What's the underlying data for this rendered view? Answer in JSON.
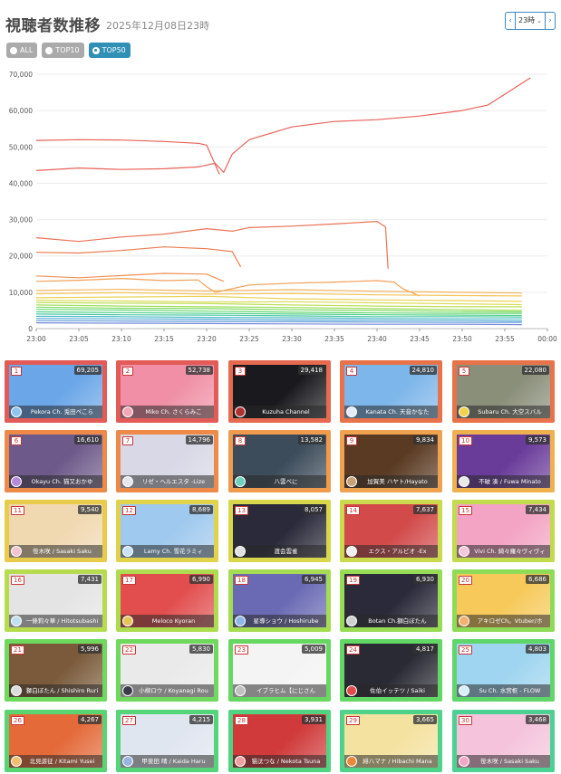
{
  "header": {
    "title": "視聴者数推移",
    "subtitle": "2025年12月08日23時",
    "hour_select": "23時",
    "prev_icon": "‹",
    "next_icon": "›",
    "caret_icon": "⌄"
  },
  "filters": [
    {
      "label": "ALL",
      "active": false
    },
    {
      "label": "TOP10",
      "active": false
    },
    {
      "label": "TOP50",
      "active": true
    }
  ],
  "chart_data": {
    "type": "line",
    "x_ticks": [
      "23:00",
      "23:05",
      "23:10",
      "23:15",
      "23:20",
      "23:25",
      "23:30",
      "23:35",
      "23:40",
      "23:45",
      "23:50",
      "23:55",
      "00:00"
    ],
    "ylim": [
      0,
      70000
    ],
    "y_ticks": [
      "0",
      "10,000",
      "20,000",
      "30,000",
      "40,000",
      "50,000",
      "60,000",
      "70,000"
    ],
    "grid": true,
    "series": [
      {
        "color": "#e8584f",
        "points": [
          [
            0,
            43500
          ],
          [
            5,
            44200
          ],
          [
            10,
            43800
          ],
          [
            15,
            44000
          ],
          [
            19,
            44500
          ],
          [
            21,
            45500
          ],
          [
            22,
            43000
          ],
          [
            23,
            48000
          ],
          [
            25,
            52000
          ],
          [
            30,
            55500
          ],
          [
            35,
            57000
          ],
          [
            40,
            57500
          ],
          [
            45,
            58500
          ],
          [
            50,
            60000
          ],
          [
            53,
            61500
          ],
          [
            55,
            64500
          ],
          [
            57,
            67500
          ],
          [
            58,
            69000
          ]
        ]
      },
      {
        "color": "#e8584f",
        "points": [
          [
            0,
            51800
          ],
          [
            5,
            52000
          ],
          [
            10,
            51900
          ],
          [
            15,
            51500
          ],
          [
            19,
            51000
          ],
          [
            20,
            50500
          ],
          [
            21.5,
            42500
          ]
        ]
      },
      {
        "color": "#e96a4b",
        "points": [
          [
            0,
            25000
          ],
          [
            5,
            24000
          ],
          [
            10,
            25200
          ],
          [
            15,
            26000
          ],
          [
            20,
            27500
          ],
          [
            23,
            26800
          ],
          [
            25,
            27800
          ],
          [
            30,
            28200
          ],
          [
            35,
            28800
          ],
          [
            40,
            29500
          ],
          [
            41,
            28000
          ],
          [
            41.3,
            16500
          ]
        ]
      },
      {
        "color": "#ea7649",
        "points": [
          [
            0,
            21000
          ],
          [
            5,
            20800
          ],
          [
            10,
            21500
          ],
          [
            15,
            22500
          ],
          [
            20,
            22000
          ],
          [
            23,
            21200
          ],
          [
            24,
            17000
          ]
        ]
      },
      {
        "color": "#ee8a4a",
        "points": [
          [
            0,
            14500
          ],
          [
            5,
            14000
          ],
          [
            10,
            14600
          ],
          [
            15,
            15200
          ],
          [
            20,
            15000
          ],
          [
            21,
            14000
          ],
          [
            22,
            13000
          ]
        ]
      },
      {
        "color": "#f09a4d",
        "points": [
          [
            0,
            13000
          ],
          [
            5,
            13300
          ],
          [
            10,
            13800
          ],
          [
            15,
            13200
          ],
          [
            19,
            13400
          ],
          [
            20,
            11500
          ],
          [
            21,
            10000
          ],
          [
            25,
            12000
          ],
          [
            30,
            12500
          ],
          [
            35,
            12800
          ],
          [
            40,
            13200
          ],
          [
            42,
            12800
          ],
          [
            43,
            11000
          ],
          [
            45,
            9000
          ]
        ]
      },
      {
        "color": "#f3ad50",
        "points": [
          [
            0,
            10500
          ],
          [
            10,
            10800
          ],
          [
            20,
            10400
          ],
          [
            30,
            10700
          ],
          [
            40,
            10300
          ],
          [
            50,
            10000
          ],
          [
            57,
            9800
          ]
        ]
      },
      {
        "color": "#f3c150",
        "points": [
          [
            0,
            9600
          ],
          [
            10,
            9900
          ],
          [
            20,
            9500
          ],
          [
            30,
            9700
          ],
          [
            40,
            9300
          ],
          [
            50,
            9100
          ],
          [
            57,
            9000
          ]
        ]
      },
      {
        "color": "#e8cf4a",
        "points": [
          [
            0,
            8500
          ],
          [
            10,
            8700
          ],
          [
            20,
            8900
          ],
          [
            30,
            8200
          ],
          [
            40,
            7900
          ],
          [
            50,
            7700
          ],
          [
            57,
            7500
          ]
        ]
      },
      {
        "color": "#d6d94a",
        "points": [
          [
            0,
            7800
          ],
          [
            10,
            7600
          ],
          [
            20,
            7300
          ],
          [
            30,
            7400
          ],
          [
            40,
            7100
          ],
          [
            50,
            6800
          ],
          [
            57,
            6600
          ]
        ]
      },
      {
        "color": "#b9dc4d",
        "points": [
          [
            0,
            7200
          ],
          [
            10,
            7000
          ],
          [
            20,
            6900
          ],
          [
            30,
            6500
          ],
          [
            40,
            6200
          ],
          [
            50,
            6000
          ],
          [
            57,
            6000
          ]
        ]
      },
      {
        "color": "#9bdc55",
        "points": [
          [
            0,
            6500
          ],
          [
            10,
            6200
          ],
          [
            20,
            6000
          ],
          [
            30,
            5800
          ],
          [
            40,
            5500
          ],
          [
            50,
            5200
          ],
          [
            57,
            5000
          ]
        ]
      },
      {
        "color": "#7bd95c",
        "points": [
          [
            0,
            5900
          ],
          [
            10,
            5600
          ],
          [
            20,
            5500
          ],
          [
            30,
            5200
          ],
          [
            40,
            5000
          ],
          [
            50,
            4700
          ],
          [
            57,
            4600
          ]
        ]
      },
      {
        "color": "#5dd46b",
        "points": [
          [
            0,
            5300
          ],
          [
            10,
            5100
          ],
          [
            20,
            4800
          ],
          [
            30,
            4500
          ],
          [
            40,
            4300
          ],
          [
            50,
            4200
          ],
          [
            57,
            4200
          ]
        ]
      },
      {
        "color": "#4ccf86",
        "points": [
          [
            0,
            4600
          ],
          [
            10,
            4400
          ],
          [
            20,
            4200
          ],
          [
            30,
            4000
          ],
          [
            40,
            3800
          ],
          [
            50,
            3700
          ],
          [
            57,
            3600
          ]
        ]
      },
      {
        "color": "#45c5a3",
        "points": [
          [
            0,
            4000
          ],
          [
            10,
            3800
          ],
          [
            20,
            3700
          ],
          [
            30,
            3500
          ],
          [
            40,
            3300
          ],
          [
            50,
            3300
          ],
          [
            57,
            3200
          ]
        ]
      },
      {
        "color": "#44b7c2",
        "points": [
          [
            0,
            3400
          ],
          [
            10,
            3300
          ],
          [
            20,
            3100
          ],
          [
            30,
            3000
          ],
          [
            40,
            2800
          ],
          [
            50,
            2700
          ],
          [
            57,
            2700
          ]
        ]
      },
      {
        "color": "#4aa6d4",
        "points": [
          [
            0,
            2800
          ],
          [
            10,
            2700
          ],
          [
            20,
            2600
          ],
          [
            30,
            2400
          ],
          [
            40,
            2300
          ],
          [
            50,
            2200
          ],
          [
            57,
            2100
          ]
        ]
      },
      {
        "color": "#5a93d8",
        "points": [
          [
            0,
            2200
          ],
          [
            10,
            2100
          ],
          [
            20,
            2000
          ],
          [
            30,
            1900
          ],
          [
            40,
            1800
          ],
          [
            50,
            1700
          ],
          [
            57,
            1700
          ]
        ]
      },
      {
        "color": "#6d83d6",
        "points": [
          [
            0,
            1600
          ],
          [
            10,
            1500
          ],
          [
            20,
            1400
          ],
          [
            30,
            1300
          ],
          [
            40,
            1200
          ],
          [
            50,
            1200
          ],
          [
            57,
            1100
          ]
        ]
      }
    ]
  },
  "cards": [
    {
      "rank": "1",
      "viewers": "69,205",
      "channel": "Pekora Ch. 兎田ぺこら",
      "border": "#e25b57",
      "art": "#6aa6e8",
      "avatar": "#8fc3f0"
    },
    {
      "rank": "2",
      "viewers": "52,738",
      "channel": "Miko Ch. さくらみこ",
      "border": "#e25b57",
      "art": "#f08fa5",
      "avatar": "#f3a7b8"
    },
    {
      "rank": "3",
      "viewers": "29,418",
      "channel": "Kuzuha Channel",
      "border": "#e56a50",
      "art": "#1a1a1e",
      "avatar": "#b03030"
    },
    {
      "rank": "4",
      "viewers": "24,810",
      "channel": "Kanata Ch. 天音かなた",
      "border": "#e87249",
      "art": "#7db6ea",
      "avatar": "#e3ecf7"
    },
    {
      "rank": "5",
      "viewers": "22,080",
      "channel": "Subaru Ch. 大空スバル",
      "border": "#e87249",
      "art": "#8a8f7a",
      "avatar": "#f2d24a"
    },
    {
      "rank": "6",
      "viewers": "16,610",
      "channel": "Okayu Ch. 猫又おかゆ",
      "border": "#ed8a4a",
      "art": "#6e5a8a",
      "avatar": "#b58adb"
    },
    {
      "rank": "7",
      "viewers": "14,796",
      "channel": "リゼ・ヘルエスタ -Lize",
      "border": "#ed8a4a",
      "art": "#d8d8e6",
      "avatar": "#e6e6f0"
    },
    {
      "rank": "8",
      "viewers": "13,582",
      "channel": "八雲べに",
      "border": "#ef9a4d",
      "art": "#3c4c5a",
      "avatar": "#6fd0c0"
    },
    {
      "rank": "9",
      "viewers": "9,834",
      "channel": "加賀美 ハヤト/Hayato",
      "border": "#efa24f",
      "art": "#5a3a22",
      "avatar": "#c9a27a"
    },
    {
      "rank": "10",
      "viewers": "9,573",
      "channel": "不破 湊 / Fuwa Minato",
      "border": "#efb050",
      "art": "#6a3c9a",
      "avatar": "#e8e8e8"
    },
    {
      "rank": "11",
      "viewers": "9,540",
      "channel": "笹木咲 / Sasaki Saku",
      "border": "#e8cb4a",
      "art": "#f0d8b0",
      "avatar": "#f3c3d0"
    },
    {
      "rank": "12",
      "viewers": "8,689",
      "channel": "Lamy Ch. 雪花ラミィ",
      "border": "#e0d24a",
      "art": "#9fc9ee",
      "avatar": "#c9e2f6"
    },
    {
      "rank": "13",
      "viewers": "8,057",
      "channel": "渡会雲雀",
      "border": "#d8d64b",
      "art": "#2a2a3a",
      "avatar": "#e0e0e0"
    },
    {
      "rank": "14",
      "viewers": "7,637",
      "channel": "エクス・アルビオ -Ex",
      "border": "#cbd94c",
      "art": "#d24a4a",
      "avatar": "#f0f0f0"
    },
    {
      "rank": "15",
      "viewers": "7,434",
      "channel": "Vivi Ch. 綺々羅々ヴィヴィ",
      "border": "#c2da4d",
      "art": "#f3a3c3",
      "avatar": "#f5c7db"
    },
    {
      "rank": "16",
      "viewers": "7,431",
      "channel": "一條莉々華 / Hitotsubashi",
      "border": "#b6dc4e",
      "art": "#e4e4e4",
      "avatar": "#bfe0f0"
    },
    {
      "rank": "17",
      "viewers": "6,990",
      "channel": "Meloco Kyoran",
      "border": "#aedc50",
      "art": "#e24e4e",
      "avatar": "#e7c45a"
    },
    {
      "rank": "18",
      "viewers": "6,945",
      "channel": "星導ショウ / Hoshirube",
      "border": "#a5dc52",
      "art": "#6a6ab4",
      "avatar": "#8fb6e8"
    },
    {
      "rank": "19",
      "viewers": "6,930",
      "channel": "Botan Ch.獅白ぼたん",
      "border": "#98dc55",
      "art": "#2a2a3a",
      "avatar": "#d0d0d0"
    },
    {
      "rank": "20",
      "viewers": "6,686",
      "channel": "アキロゼCh。Vtuber/ホ",
      "border": "#8edb57",
      "art": "#f6c95a",
      "avatar": "#f3b070"
    },
    {
      "rank": "21",
      "viewers": "5,996",
      "channel": "獅白ぼたん / Shishiro Ruri",
      "border": "#6ed95c",
      "art": "#7a5a3a",
      "avatar": "#dcdcdc"
    },
    {
      "rank": "22",
      "viewers": "5,830",
      "channel": "小柳ロウ / Koyanagi Rou",
      "border": "#6ed95c",
      "art": "#eaeaea",
      "avatar": "#3a3a4a"
    },
    {
      "rank": "23",
      "viewers": "5,009",
      "channel": "イブラヒム【にじさん",
      "border": "#66d862",
      "art": "#f4f4f4",
      "avatar": "#c0c0c0"
    },
    {
      "rank": "24",
      "viewers": "4,817",
      "channel": "佐伯イッテツ / Saiki",
      "border": "#62d766",
      "art": "#2a2a34",
      "avatar": "#e04a4a"
    },
    {
      "rank": "25",
      "viewers": "4,803",
      "channel": "Su Ch. 水宮枢 - FLOW",
      "border": "#5ed66a",
      "art": "#9fd5f0",
      "avatar": "#d6f0fa"
    },
    {
      "rank": "26",
      "viewers": "4,267",
      "channel": "北見遊征 / Kitami Yusei",
      "border": "#58d472",
      "art": "#e46a3a",
      "avatar": "#f0c070"
    },
    {
      "rank": "27",
      "viewers": "4,215",
      "channel": "甲斐田 晴 / Kaida Haru",
      "border": "#55d47a",
      "art": "#e0e6f0",
      "avatar": "#9ab4e0"
    },
    {
      "rank": "28",
      "viewers": "3,931",
      "channel": "猫汰つな / Nekota Tsuna",
      "border": "#52d382",
      "art": "#d03a3a",
      "avatar": "#f0a0a0"
    },
    {
      "rank": "29",
      "viewers": "3,665",
      "channel": "緋八マナ / Hibachi Mana",
      "border": "#4fd28a",
      "art": "#f4e2a0",
      "avatar": "#e88a3a"
    },
    {
      "rank": "30",
      "viewers": "3,468",
      "channel": "笹木咲 / Sasaki Saku",
      "border": "#4cd192",
      "art": "#f5c4dc",
      "avatar": "#f3a7c8"
    }
  ]
}
